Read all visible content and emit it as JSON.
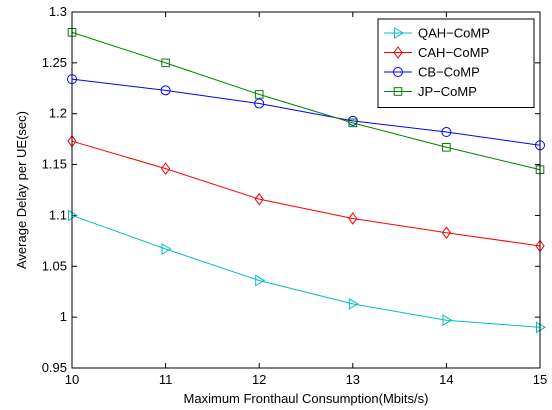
{
  "chart_data": {
    "type": "line",
    "title": "",
    "xlabel": "Maximum Fronthaul Consumption(Mbits/s)",
    "ylabel": "Average Delay per UE(sec)",
    "xlim": [
      10,
      15
    ],
    "ylim": [
      0.95,
      1.3
    ],
    "x": [
      10,
      11,
      12,
      13,
      14,
      15
    ],
    "xticks": [
      10,
      11,
      12,
      13,
      14,
      15
    ],
    "yticks": [
      0.95,
      1,
      1.05,
      1.1,
      1.15,
      1.2,
      1.25,
      1.3
    ],
    "xtick_labels": [
      "10",
      "11",
      "12",
      "13",
      "14",
      "15"
    ],
    "ytick_labels": [
      "0.95",
      "1",
      "1.05",
      "1.1",
      "1.15",
      "1.2",
      "1.25",
      "1.3"
    ],
    "grid": false,
    "legend_position": "top-right",
    "series": [
      {
        "name": "QAH−CoMP",
        "color": "#00bfbf",
        "marker": "triangle-right",
        "values": [
          1.1,
          1.067,
          1.036,
          1.013,
          0.997,
          0.99
        ]
      },
      {
        "name": "CAH−CoMP",
        "color": "#ff0000",
        "marker": "diamond",
        "values": [
          1.173,
          1.146,
          1.116,
          1.097,
          1.083,
          1.07
        ]
      },
      {
        "name": "CB−CoMP",
        "color": "#0000ff",
        "marker": "circle",
        "values": [
          1.234,
          1.223,
          1.21,
          1.193,
          1.182,
          1.169
        ]
      },
      {
        "name": "JP−CoMP",
        "color": "#008000",
        "marker": "square",
        "values": [
          1.28,
          1.25,
          1.219,
          1.191,
          1.167,
          1.145
        ]
      }
    ]
  }
}
